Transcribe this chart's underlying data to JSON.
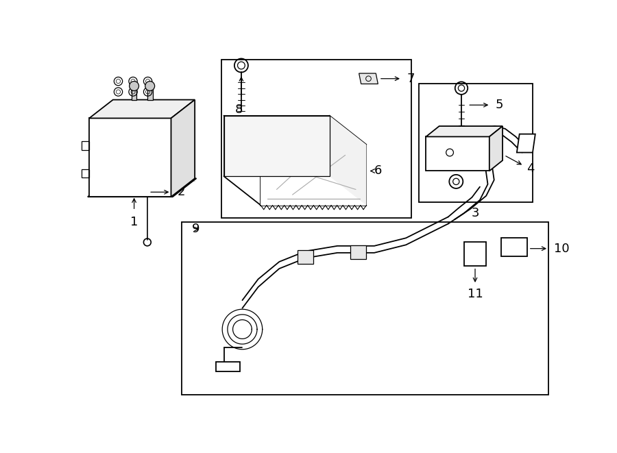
{
  "bg_color": "#ffffff",
  "line_color": "#000000",
  "light_line_color": "#aaaaaa",
  "fig_width": 9.0,
  "fig_height": 6.61,
  "dpi": 100
}
